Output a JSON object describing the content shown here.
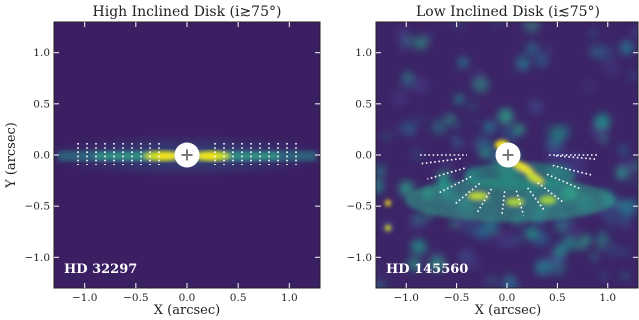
{
  "panels": [
    {
      "title": "High Inclined Disk (i≳75°)",
      "xlabel": "X (arcsec)",
      "ylabel": "Y (arcsec)",
      "star_label": "HD 32297",
      "xlim": [
        -1.3,
        1.3
      ],
      "ylim": [
        -1.3,
        1.3
      ],
      "xticks": [
        "-1.0",
        "-0.5",
        "0.0",
        "0.5",
        "1.0"
      ],
      "yticks": [
        "-1.0",
        "-0.5",
        "0.0",
        "0.5",
        "1.0"
      ]
    },
    {
      "title": "Low Inclined Disk (i≲75°)",
      "xlabel": "X (arcsec)",
      "ylabel": "",
      "star_label": "HD 145560",
      "xlim": [
        -1.3,
        1.3
      ],
      "ylim": [
        -1.3,
        1.3
      ],
      "xticks": [
        "-1.0",
        "-0.5",
        "0.0",
        "0.5",
        "1.0"
      ],
      "yticks": [
        "-1.0",
        "-0.5",
        "0.0",
        "0.5",
        "1.0"
      ]
    }
  ],
  "colors": {
    "background": "#3b1d63",
    "disk_mid": "#21a38a",
    "disk_bright": "#f2e31c",
    "overlay": "#ffffff"
  }
}
